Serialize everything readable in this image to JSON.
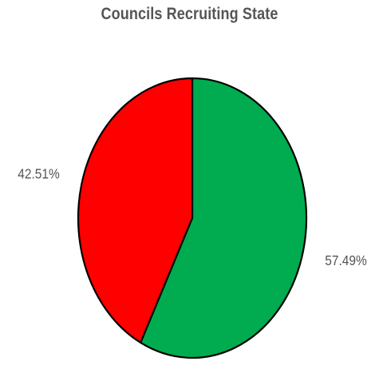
{
  "chart_data": {
    "type": "pie",
    "title": "Councils Recruiting State",
    "slices": [
      {
        "value": 57.49,
        "label": "57.49%",
        "color": "#00ac4f"
      },
      {
        "value": 42.51,
        "label": "42.51%",
        "color": "#ff0000"
      }
    ],
    "start_angle_deg": 90,
    "direction": "clockwise",
    "edge_color": "#000000",
    "legend": "none"
  }
}
